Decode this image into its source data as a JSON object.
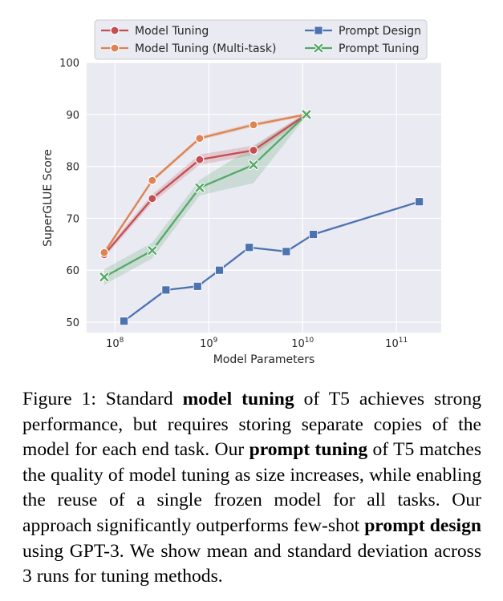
{
  "chart_data": {
    "type": "line",
    "xlabel": "Model Parameters",
    "ylabel": "SuperGLUE Score",
    "x_scale": "log",
    "xlim": [
      50000000,
      300000000000
    ],
    "ylim": [
      48,
      100
    ],
    "x_ticks": [
      {
        "value": 100000000,
        "base": "10",
        "exp": "8"
      },
      {
        "value": 1000000000,
        "base": "10",
        "exp": "9"
      },
      {
        "value": 10000000000,
        "base": "10",
        "exp": "10"
      },
      {
        "value": 100000000000,
        "base": "10",
        "exp": "11"
      }
    ],
    "y_ticks": [
      50,
      60,
      70,
      80,
      90,
      100
    ],
    "grid": true,
    "legend_position": "top",
    "series": [
      {
        "name": "Model Tuning",
        "color": "#c44e52",
        "marker": "circle",
        "x": [
          77000000,
          250000000,
          800000000,
          3000000000,
          11000000000
        ],
        "y": [
          63.0,
          73.8,
          81.3,
          83.1,
          90.0
        ],
        "band": [
          0.6,
          0.8,
          1.0,
          0.9,
          0.4
        ]
      },
      {
        "name": "Model Tuning (Multi-task)",
        "color": "#dd8452",
        "marker": "circle",
        "x": [
          77000000,
          250000000,
          800000000,
          3000000000,
          11000000000
        ],
        "y": [
          63.4,
          77.3,
          85.4,
          88.0,
          90.0
        ],
        "band": [
          0.4,
          0.4,
          0.4,
          0.4,
          0.3
        ]
      },
      {
        "name": "Prompt Design",
        "color": "#4c72b0",
        "marker": "square",
        "x": [
          125000000,
          350000000,
          760000000,
          1300000000,
          2700000000,
          6700000000,
          13000000000,
          175000000000
        ],
        "y": [
          50.2,
          56.2,
          56.9,
          60.0,
          64.4,
          63.6,
          66.9,
          73.2
        ]
      },
      {
        "name": "Prompt Tuning",
        "color": "#55a868",
        "marker": "x",
        "x": [
          77000000,
          250000000,
          800000000,
          3000000000,
          11000000000
        ],
        "y": [
          58.7,
          63.8,
          75.9,
          80.3,
          90.0
        ],
        "band": [
          1.5,
          1.5,
          1.5,
          3.5,
          0.3
        ]
      }
    ]
  },
  "caption": {
    "label": "Figure 1:",
    "t1": " Standard ",
    "b1": "model tuning",
    "t2": " of T5 achieves strong performance, but requires storing separate copies of the model for each end task.  Our ",
    "b2": "prompt tuning",
    "t3": " of T5 matches the quality of model tuning as size increases, while enabling the reuse of a single frozen model for all tasks. Our approach significantly outperforms few-shot ",
    "b3": "prompt design",
    "t4": " using GPT-3. We show mean and standard deviation across 3 runs for tuning methods."
  }
}
